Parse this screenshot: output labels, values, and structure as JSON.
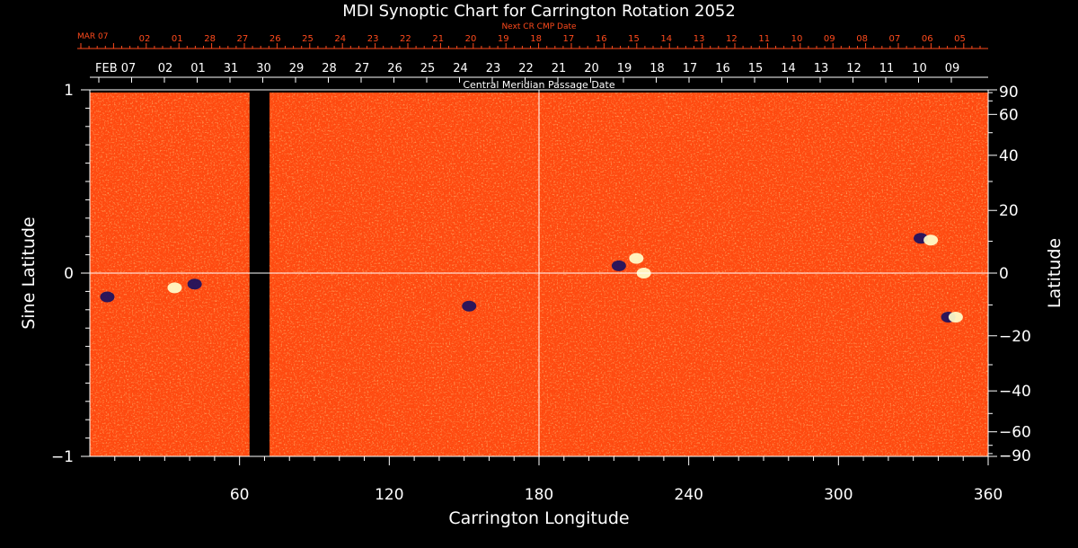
{
  "chart_data": {
    "type": "heatmap",
    "title": "MDI Synoptic Chart for Carrington Rotation 2052",
    "xlabel": "Carrington Longitude",
    "ylabel_left": "Sine Latitude",
    "ylabel_right": "Latitude",
    "xlim": [
      0,
      360
    ],
    "ylim": [
      -1,
      1
    ],
    "x_ticks": [
      60,
      120,
      180,
      240,
      300,
      360
    ],
    "y_ticks_left": [
      {
        "value": 1,
        "label": "1"
      },
      {
        "value": 0,
        "label": "0"
      },
      {
        "value": -1,
        "label": "−1"
      }
    ],
    "y_ticks_right": [
      {
        "value": 90,
        "label": "90"
      },
      {
        "value": 60,
        "label": "60"
      },
      {
        "value": 40,
        "label": "40"
      },
      {
        "value": 20,
        "label": "20"
      },
      {
        "value": 0,
        "label": "0"
      },
      {
        "value": -20,
        "label": "−20"
      },
      {
        "value": -40,
        "label": "−40"
      },
      {
        "value": -60,
        "label": "−60"
      },
      {
        "value": -90,
        "label": "−90"
      }
    ],
    "top_axis_label": "Central Meridian Passage Date",
    "top_axis_month": "FEB 07",
    "top_axis_dates": [
      "02",
      "01",
      "31",
      "30",
      "29",
      "28",
      "27",
      "26",
      "25",
      "24",
      "23",
      "22",
      "21",
      "20",
      "19",
      "18",
      "17",
      "16",
      "15",
      "14",
      "13",
      "12",
      "11",
      "10",
      "09"
    ],
    "next_cr_label": "Next CR CMP Date",
    "next_cr_month": "MAR 07",
    "next_cr_dates": [
      "02",
      "01",
      "28",
      "27",
      "26",
      "25",
      "24",
      "23",
      "22",
      "21",
      "20",
      "19",
      "18",
      "17",
      "16",
      "15",
      "14",
      "13",
      "12",
      "11",
      "10",
      "09",
      "08",
      "07",
      "06",
      "05"
    ],
    "data_gap_longitude": [
      64,
      72
    ],
    "colors": {
      "background_field": "#ff4a10",
      "positive": "#ffffcc",
      "negative": "#1a1060",
      "gap": "#000000",
      "accent_text": "#ff4a1c"
    },
    "active_regions": [
      {
        "lon": 34,
        "sinlat": -0.08,
        "polarity": "positive"
      },
      {
        "lon": 42,
        "sinlat": -0.06,
        "polarity": "negative"
      },
      {
        "lon": 7,
        "sinlat": -0.13,
        "polarity": "negative"
      },
      {
        "lon": 212,
        "sinlat": 0.04,
        "polarity": "negative"
      },
      {
        "lon": 219,
        "sinlat": 0.08,
        "polarity": "positive"
      },
      {
        "lon": 222,
        "sinlat": 0.0,
        "polarity": "positive"
      },
      {
        "lon": 152,
        "sinlat": -0.18,
        "polarity": "negative"
      },
      {
        "lon": 333,
        "sinlat": 0.19,
        "polarity": "negative"
      },
      {
        "lon": 337,
        "sinlat": 0.18,
        "polarity": "positive"
      },
      {
        "lon": 344,
        "sinlat": -0.24,
        "polarity": "negative"
      },
      {
        "lon": 347,
        "sinlat": -0.24,
        "polarity": "positive"
      }
    ]
  }
}
